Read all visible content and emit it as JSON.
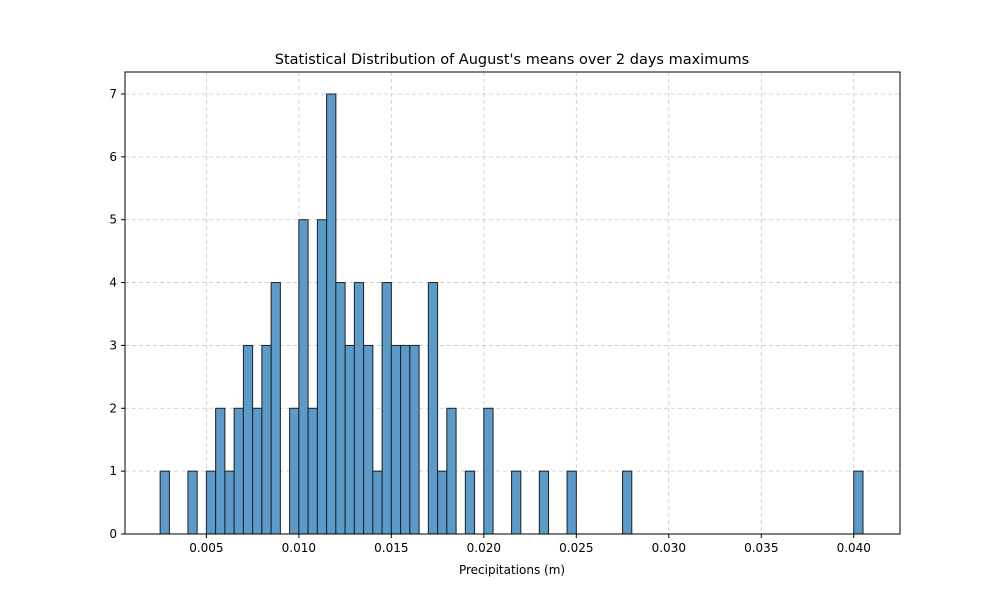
{
  "chart_data": {
    "type": "bar",
    "title": "Statistical Distribution of August's means over 2 days maximums",
    "xlabel": "Precipitations (m)",
    "ylabel": "",
    "xlim": [
      0.0006,
      0.0425
    ],
    "ylim": [
      0,
      7.35
    ],
    "xticks": [
      0.005,
      0.01,
      0.015,
      0.02,
      0.025,
      0.03,
      0.035,
      0.04
    ],
    "xtick_labels": [
      "0.005",
      "0.010",
      "0.015",
      "0.020",
      "0.025",
      "0.030",
      "0.035",
      "0.040"
    ],
    "yticks": [
      0,
      1,
      2,
      3,
      4,
      5,
      6,
      7
    ],
    "ytick_labels": [
      "0",
      "1",
      "2",
      "3",
      "4",
      "5",
      "6",
      "7"
    ],
    "grid": true,
    "bar_color": "#5b9bc9",
    "edge_color": "#1f1f1f",
    "bin_width": 0.0005,
    "bins": [
      {
        "x": 0.00275,
        "count": 1
      },
      {
        "x": 0.00425,
        "count": 1
      },
      {
        "x": 0.00525,
        "count": 1
      },
      {
        "x": 0.00575,
        "count": 2
      },
      {
        "x": 0.00625,
        "count": 1
      },
      {
        "x": 0.00675,
        "count": 2
      },
      {
        "x": 0.00725,
        "count": 3
      },
      {
        "x": 0.00775,
        "count": 2
      },
      {
        "x": 0.00825,
        "count": 3
      },
      {
        "x": 0.00875,
        "count": 4
      },
      {
        "x": 0.00975,
        "count": 2
      },
      {
        "x": 0.01025,
        "count": 5
      },
      {
        "x": 0.01075,
        "count": 2
      },
      {
        "x": 0.01125,
        "count": 5
      },
      {
        "x": 0.01175,
        "count": 7
      },
      {
        "x": 0.01225,
        "count": 4
      },
      {
        "x": 0.01275,
        "count": 3
      },
      {
        "x": 0.01325,
        "count": 4
      },
      {
        "x": 0.01375,
        "count": 3
      },
      {
        "x": 0.01425,
        "count": 1
      },
      {
        "x": 0.01475,
        "count": 4
      },
      {
        "x": 0.01525,
        "count": 3
      },
      {
        "x": 0.01575,
        "count": 3
      },
      {
        "x": 0.01625,
        "count": 3
      },
      {
        "x": 0.01725,
        "count": 4
      },
      {
        "x": 0.01775,
        "count": 1
      },
      {
        "x": 0.01825,
        "count": 2
      },
      {
        "x": 0.01925,
        "count": 1
      },
      {
        "x": 0.02025,
        "count": 2
      },
      {
        "x": 0.02175,
        "count": 1
      },
      {
        "x": 0.02325,
        "count": 1
      },
      {
        "x": 0.02475,
        "count": 1
      },
      {
        "x": 0.02775,
        "count": 1
      },
      {
        "x": 0.04025,
        "count": 1
      }
    ]
  }
}
